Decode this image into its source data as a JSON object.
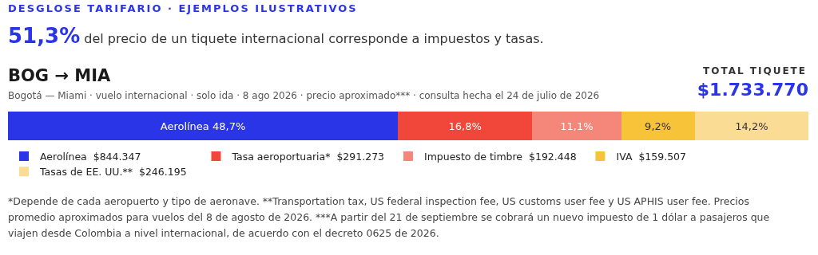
{
  "chart_data": {
    "type": "bar",
    "orientation": "horizontal",
    "stacked": true,
    "title": "DESGLOSE TARIFARIO · EJEMPLOS ILUSTRATIVOS",
    "subtitle": "51,3% del precio de un tiquete internacional corresponde a impuestos y tasas.",
    "annotations": [
      "BOG → MIA",
      "Bogotá — Miami · vuelo internacional · solo ida · 8 ago 2026 · precio aproximado*** · consulta hecha el 24 de julio de 2026",
      "TOTAL TIQUETE",
      "$1.733.770",
      "*Depende de cada aeropuerto y tipo de aeronave. **Transportation tax, US federal inspection fee, US customs user fee y US APHIS user fee. Precios promedio aproximados para vuelos del 8 de agosto de 2026. ***A partir del 21 de septiembre se cobrará un nuevo impuesto de 1 dólar a pasajeros que viajen desde Colombia a nivel internacional, de acuerdo con el decreto 0625 de 2026."
    ],
    "categories": [
      null
    ],
    "series": [
      {
        "name": "Aerolínea  $844.347",
        "color": "#2b35e8",
        "values": [
          48.7
        ],
        "value_labels": [
          "Aerolínea 48,7%"
        ]
      },
      {
        "name": "Tasa aeroportuaria*  $291.273",
        "color": "#f0473a",
        "values": [
          16.8
        ],
        "value_labels": [
          "16,8%"
        ]
      },
      {
        "name": "Impuesto de timbre  $192.448",
        "color": "#f4877a",
        "values": [
          11.1
        ],
        "value_labels": [
          "11,1%"
        ]
      },
      {
        "name": "IVA  $159.507",
        "color": "#f7c338",
        "values": [
          9.2
        ],
        "value_labels": [
          "9,2%"
        ]
      },
      {
        "name": "Tasas de EE. UU.**  $246.195",
        "color": "#fbdc94",
        "values": [
          14.2
        ],
        "value_labels": [
          "14,2%"
        ]
      }
    ],
    "legend": "bottom"
  }
}
